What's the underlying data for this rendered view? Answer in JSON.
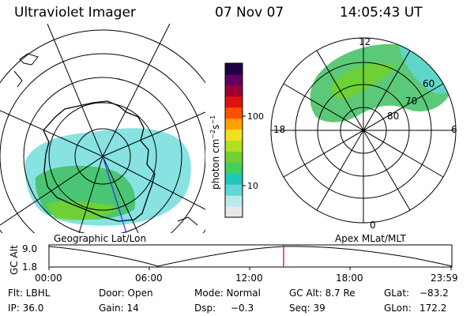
{
  "header": {
    "instrument": "Ultraviolet Imager",
    "date": "07 Nov 07",
    "time": "14:05:43 UT"
  },
  "left_panel": {
    "label": "Geographic Lat/Lon"
  },
  "right_panel": {
    "label": "Apex MLat/MLT",
    "mlt_labels": [
      "12",
      "18",
      "6",
      "0"
    ],
    "lat_labels": [
      "60",
      "70",
      "80"
    ]
  },
  "colorbar": {
    "label_main": "photon cm",
    "label_sup1": "−2",
    "label_s": "s",
    "label_sup2": "−1",
    "ticks": [
      "100",
      "10"
    ],
    "colors": [
      "#e8e8e8",
      "#b8eaea",
      "#60d8d8",
      "#20c8b8",
      "#40d060",
      "#70d030",
      "#b0e020",
      "#f0e020",
      "#ffa000",
      "#ff5000",
      "#e01010",
      "#a00030",
      "#600060",
      "#200040"
    ]
  },
  "altitude_plot": {
    "ylabel": "GC Alt",
    "ytick_top": "9.0",
    "ytick_bottom": "1.8",
    "xticks": [
      "00:00",
      "06:00",
      "12:00",
      "18:00",
      "23:59"
    ],
    "marker_color": "#cc0000"
  },
  "footer": {
    "filter": "Flt: LBHL",
    "ip": "IP: 36.0",
    "door": "Door: Open",
    "gain": "Gain: 14",
    "mode": "Mode: Normal",
    "dsp_label": "Dsp:",
    "dsp_value": "−0.3",
    "gc_alt": "GC Alt: 8.7 Re",
    "seq": "Seq: 39",
    "glat_label": "GLat:",
    "glat_value": "−83.2",
    "glon_label": "GLon:",
    "glon_value": "172.2"
  }
}
